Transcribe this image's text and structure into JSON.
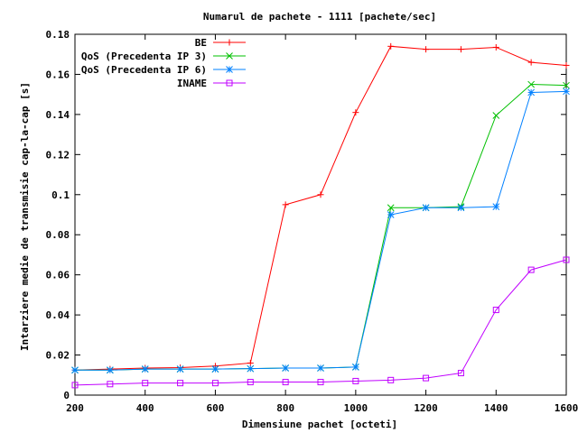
{
  "chart_data": {
    "type": "line",
    "title": "Numarul de pachete - 1111 [pachete/sec]",
    "xlabel": "Dimensiune pachet [octeti]",
    "ylabel": "Intarziere medie de transmisie cap-la-cap [s]",
    "xlim": [
      200,
      1600
    ],
    "ylim": [
      0,
      0.18
    ],
    "xticks": [
      200,
      400,
      600,
      800,
      1000,
      1200,
      1400,
      1600
    ],
    "xtick_labels": [
      "200",
      "400",
      "600",
      "800",
      "1000",
      "1200",
      "1400",
      "1600"
    ],
    "yticks": [
      0,
      0.02,
      0.04,
      0.06,
      0.08,
      0.1,
      0.12,
      0.14,
      0.16,
      0.18
    ],
    "ytick_labels": [
      "0",
      "0.02",
      "0.04",
      "0.06",
      "0.08",
      "0.1",
      "0.12",
      "0.14",
      "0.16",
      "0.18"
    ],
    "grid": false,
    "legend_position": "top-right",
    "x": [
      200,
      300,
      400,
      500,
      600,
      700,
      800,
      900,
      1000,
      1100,
      1200,
      1300,
      1400,
      1500,
      1600
    ],
    "series": [
      {
        "name": "BE",
        "color": "#ff0000",
        "marker": "plus",
        "values": [
          0.0125,
          0.013,
          0.0135,
          0.0137,
          0.0145,
          0.016,
          0.095,
          0.1,
          0.141,
          0.174,
          0.1725,
          0.1725,
          0.1735,
          0.166,
          0.1645
        ]
      },
      {
        "name": "QoS (Precedenta IP 3)",
        "color": "#00c000",
        "marker": "x",
        "values": [
          0.0125,
          0.0125,
          0.013,
          0.013,
          0.013,
          0.0132,
          0.0135,
          0.0135,
          0.014,
          0.0935,
          0.0935,
          0.094,
          0.1395,
          0.155,
          0.1545
        ]
      },
      {
        "name": "QoS (Precedenta IP 6)",
        "color": "#0080ff",
        "marker": "star",
        "values": [
          0.0125,
          0.0125,
          0.013,
          0.013,
          0.013,
          0.0132,
          0.0135,
          0.0135,
          0.014,
          0.09,
          0.0935,
          0.0935,
          0.094,
          0.151,
          0.1515
        ]
      },
      {
        "name": "INAME",
        "color": "#c000ff",
        "marker": "square",
        "values": [
          0.005,
          0.0055,
          0.006,
          0.006,
          0.006,
          0.0065,
          0.0065,
          0.0065,
          0.007,
          0.0075,
          0.0085,
          0.011,
          0.0425,
          0.0625,
          0.0675
        ]
      }
    ]
  }
}
